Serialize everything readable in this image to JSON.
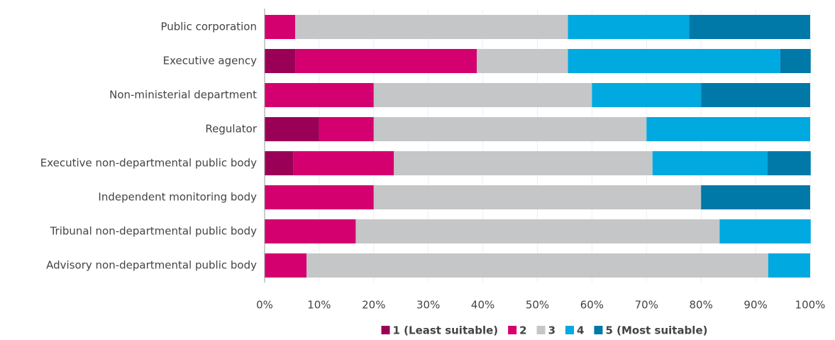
{
  "chart_data": {
    "type": "stacked-barh",
    "categories": [
      "Public corporation",
      "Executive agency",
      "Non-ministerial department",
      "Regulator",
      "Executive non-departmental public body",
      "Independent monitoring body",
      "Tribunal non-departmental public body",
      "Advisory non-departmental public body"
    ],
    "series": [
      {
        "name": "1 (Least suitable)",
        "color": "#9b0057",
        "values": [
          0,
          5.6,
          0,
          10,
          5.3,
          0,
          0,
          0
        ]
      },
      {
        "name": "2",
        "color": "#d4006f",
        "values": [
          5.6,
          33.3,
          20,
          10,
          18.4,
          20,
          16.7,
          7.7
        ]
      },
      {
        "name": "3",
        "color": "#c4c6c8",
        "values": [
          50,
          16.7,
          40,
          50,
          47.4,
          60,
          66.7,
          84.6
        ]
      },
      {
        "name": "4",
        "color": "#00a9e0",
        "values": [
          22.2,
          38.9,
          20,
          30,
          21.1,
          0,
          16.7,
          7.7
        ]
      },
      {
        "name": "5 (Most suitable)",
        "color": "#0079a8",
        "values": [
          22.2,
          5.6,
          20,
          0,
          7.9,
          20,
          0,
          0
        ]
      }
    ],
    "xlim": [
      0,
      100
    ],
    "xticks": [
      {
        "value": 0,
        "label": "0%"
      },
      {
        "value": 10,
        "label": "10%"
      },
      {
        "value": 20,
        "label": "20%"
      },
      {
        "value": 30,
        "label": "30%"
      },
      {
        "value": 40,
        "label": "40%"
      },
      {
        "value": 50,
        "label": "50%"
      },
      {
        "value": 60,
        "label": "60%"
      },
      {
        "value": 70,
        "label": "70%"
      },
      {
        "value": 80,
        "label": "80%"
      },
      {
        "value": 90,
        "label": "90%"
      },
      {
        "value": 100,
        "label": "100%"
      }
    ],
    "grid": true,
    "legend": "bottom"
  }
}
